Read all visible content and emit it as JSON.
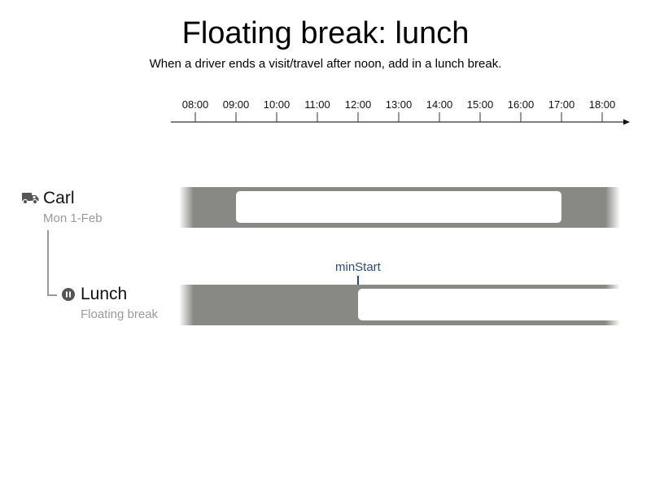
{
  "header": {
    "title": "Floating break: lunch",
    "subtitle": "When a driver ends a visit/travel after noon, add in a lunch break."
  },
  "timeline": {
    "ticks": [
      "08:00",
      "09:00",
      "10:00",
      "11:00",
      "12:00",
      "13:00",
      "14:00",
      "15:00",
      "16:00",
      "17:00",
      "18:00"
    ]
  },
  "rows": [
    {
      "name": "Carl",
      "subtitle": "Mon 1-Feb",
      "icon": "truck-icon",
      "window_start": "09:00",
      "window_end": "17:00"
    },
    {
      "name": "Lunch",
      "subtitle": "Floating break",
      "icon": "pause-icon",
      "window_start": "12:00"
    }
  ],
  "marker": {
    "label": "minStart",
    "time": "12:00",
    "color": "#2b4a7e"
  },
  "colors": {
    "track": "#888884",
    "label_secondary": "#9a9a9a"
  }
}
